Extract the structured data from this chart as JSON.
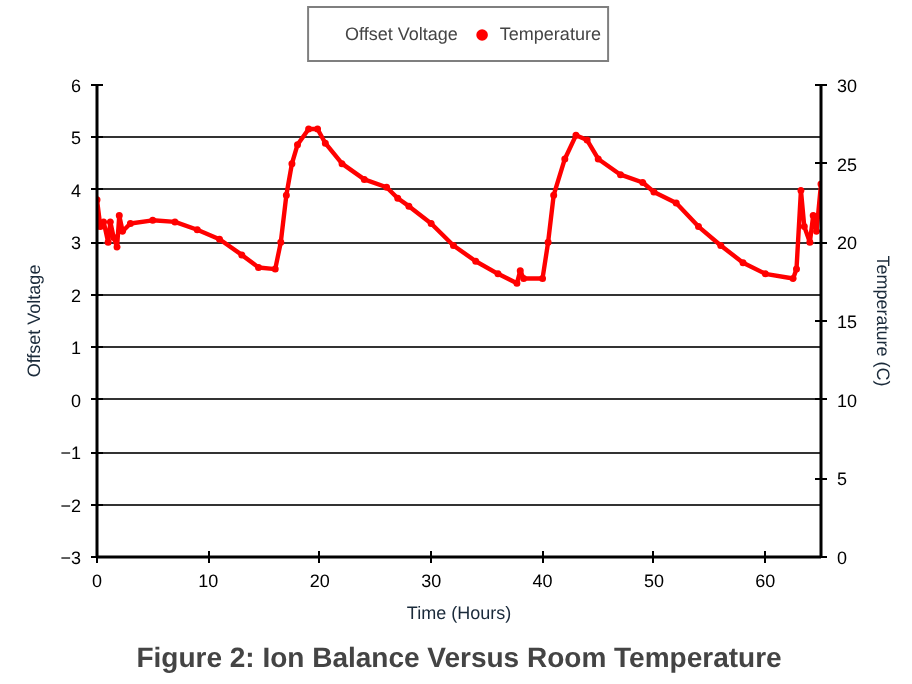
{
  "chart_data": {
    "type": "line",
    "title": "Figure 2: Ion Balance Versus Room Temperature",
    "xlabel": "Time (Hours)",
    "ylabel": "Offset Voltage",
    "y2label": "Temperature (C)",
    "xlim": [
      0,
      65
    ],
    "xticks": [
      0,
      10,
      20,
      30,
      40,
      50,
      60
    ],
    "ylim": [
      -3,
      6
    ],
    "yticks": [
      -3,
      -2,
      -1,
      0,
      1,
      2,
      3,
      4,
      5,
      6
    ],
    "y2lim": [
      0,
      30
    ],
    "y2ticks": [
      0,
      5,
      10,
      15,
      20,
      25,
      30
    ],
    "grid": "y",
    "legend": "top",
    "marker": "circle",
    "series": [
      {
        "name": "Offset Voltage"
      },
      {
        "name": "Temperature",
        "axis": "y2",
        "color": "#ff0000",
        "x": [
          0,
          0.3,
          0.6,
          1,
          1.2,
          1.5,
          1.8,
          2,
          2.3,
          3,
          5,
          7,
          9,
          11,
          13,
          14.5,
          16,
          16.5,
          17,
          17.5,
          18,
          19,
          19.8,
          20.5,
          22,
          24,
          26,
          27,
          28,
          30,
          32,
          34,
          36,
          37.7,
          38,
          38.3,
          40,
          40.5,
          41,
          42,
          43,
          44,
          45,
          47,
          49,
          50,
          52,
          54,
          56,
          58,
          60,
          62.5,
          62.8,
          63.2,
          63.5,
          64,
          64.3,
          64.6,
          65
        ],
        "values": [
          22.7,
          21.0,
          21.3,
          20.0,
          21.3,
          20.3,
          19.7,
          21.7,
          20.7,
          21.2,
          21.4,
          21.3,
          20.8,
          20.2,
          19.2,
          18.4,
          18.3,
          20.0,
          23.0,
          25.0,
          26.2,
          27.2,
          27.2,
          26.3,
          25.0,
          24.0,
          23.5,
          22.8,
          22.3,
          21.2,
          19.8,
          18.8,
          18.0,
          17.4,
          18.2,
          17.7,
          17.7,
          20.0,
          23.0,
          25.3,
          26.8,
          26.5,
          25.3,
          24.3,
          23.8,
          23.2,
          22.5,
          21.0,
          19.8,
          18.7,
          18.0,
          17.7,
          18.3,
          23.3,
          21.0,
          20.0,
          21.7,
          20.7,
          23.7
        ]
      }
    ]
  }
}
